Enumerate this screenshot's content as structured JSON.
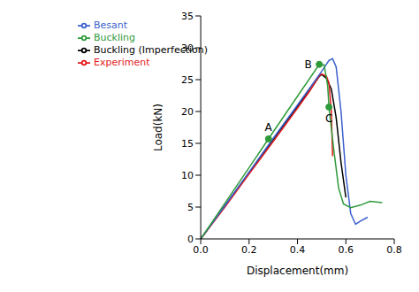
{
  "chart_data": {
    "type": "line",
    "xlabel": "Displacement(mm)",
    "ylabel": "Load(kN)",
    "xlim": [
      0,
      0.8
    ],
    "xticks": [
      {
        "value": 0,
        "label": "0.0"
      },
      {
        "value": 0.2,
        "label": "0.2"
      },
      {
        "value": 0.4,
        "label": "0.4"
      },
      {
        "value": 0.6,
        "label": "0.6"
      },
      {
        "value": 0.8,
        "label": "0.8"
      }
    ],
    "ylim": [
      0,
      35
    ],
    "yticks": [
      0,
      5,
      10,
      15,
      20,
      25,
      30,
      35
    ],
    "grid": false,
    "legend": "upper left",
    "series": [
      {
        "name": "Buckling (Imperfection)",
        "color": "#000000",
        "x": [
          0,
          0.1,
          0.2,
          0.3,
          0.4,
          0.45,
          0.49,
          0.5,
          0.52,
          0.54,
          0.56,
          0.58,
          0.6
        ],
        "values": [
          0,
          5.2,
          10.4,
          15.6,
          20.8,
          23.3,
          25.5,
          25.8,
          25.2,
          23.5,
          19,
          12,
          6.5
        ]
      },
      {
        "name": "Experiment",
        "color": "#e41a1c",
        "x": [
          0,
          0.1,
          0.2,
          0.3,
          0.4,
          0.45,
          0.49,
          0.5,
          0.52,
          0.53,
          0.54,
          0.545
        ],
        "values": [
          0,
          5,
          10.2,
          15.3,
          20.5,
          23.2,
          25.6,
          25.9,
          25.5,
          24.5,
          20,
          13
        ]
      },
      {
        "name": "Besant",
        "color": "#3a5fcd",
        "x": [
          0,
          0.1,
          0.2,
          0.3,
          0.4,
          0.5,
          0.53,
          0.545,
          0.56,
          0.58,
          0.6,
          0.62,
          0.64,
          0.66,
          0.69
        ],
        "values": [
          0,
          5.2,
          10.5,
          15.8,
          21,
          26.3,
          28,
          28.3,
          27,
          20,
          10,
          4,
          2.3,
          2.8,
          3.4
        ]
      },
      {
        "name": "Buckling",
        "color": "#2e9b3a",
        "x": [
          0,
          0.1,
          0.2,
          0.28,
          0.4,
          0.49,
          0.51,
          0.525,
          0.53,
          0.55,
          0.57,
          0.59,
          0.62,
          0.66,
          0.7,
          0.75
        ],
        "values": [
          0,
          5.6,
          11.2,
          15.7,
          22.4,
          27.4,
          27.3,
          24,
          20.7,
          14,
          8,
          5.5,
          4.9,
          5.3,
          5.9,
          5.7
        ]
      }
    ],
    "annotations": [
      {
        "text": "A",
        "x": 0.28,
        "y": 15.7
      },
      {
        "text": "B",
        "x": 0.49,
        "y": 27.4
      },
      {
        "text": "C",
        "x": 0.53,
        "y": 20.7
      }
    ]
  }
}
